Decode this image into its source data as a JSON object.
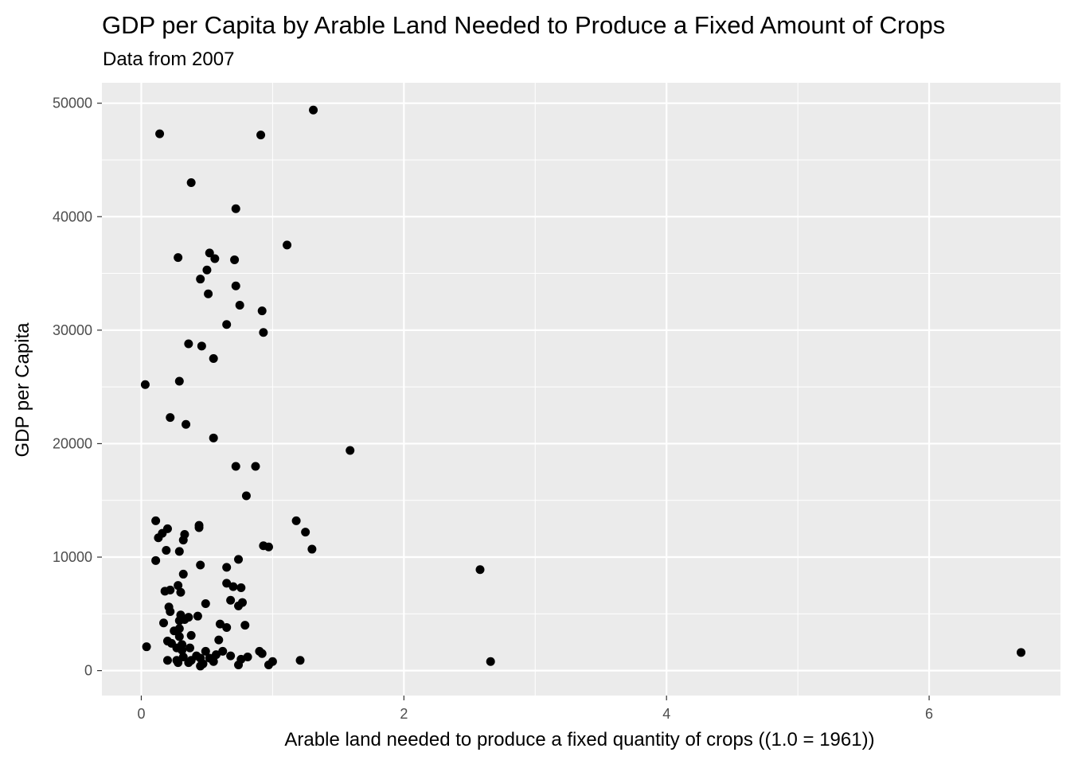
{
  "chart_data": {
    "type": "scatter",
    "title": "GDP per Capita by Arable Land Needed to Produce a Fixed Amount of Crops",
    "subtitle": "Data from 2007",
    "xlabel": "Arable land needed to produce a fixed quantity of crops ((1.0 = 1961))",
    "ylabel": "GDP per Capita",
    "xlim": [
      -0.3,
      7.0
    ],
    "ylim": [
      -2200,
      51800
    ],
    "x_ticks": [
      0,
      2,
      4,
      6
    ],
    "y_ticks": [
      0,
      10000,
      20000,
      30000,
      40000,
      50000
    ],
    "x_tick_labels": [
      "0",
      "2",
      "4",
      "6"
    ],
    "y_tick_labels": [
      "0",
      "10000",
      "20000",
      "30000",
      "40000",
      "50000"
    ],
    "grid": true,
    "legend": "none",
    "colors": {
      "panel": "#ebebeb",
      "grid": "#ffffff",
      "point": "#000000",
      "tick": "#4d4d4d"
    },
    "points": [
      {
        "x": 1.31,
        "y": 49400
      },
      {
        "x": 0.14,
        "y": 47300
      },
      {
        "x": 0.91,
        "y": 47200
      },
      {
        "x": 0.38,
        "y": 43000
      },
      {
        "x": 0.72,
        "y": 40700
      },
      {
        "x": 1.11,
        "y": 37500
      },
      {
        "x": 0.52,
        "y": 36800
      },
      {
        "x": 0.28,
        "y": 36400
      },
      {
        "x": 0.56,
        "y": 36300
      },
      {
        "x": 0.71,
        "y": 36200
      },
      {
        "x": 0.5,
        "y": 35300
      },
      {
        "x": 0.45,
        "y": 34500
      },
      {
        "x": 0.72,
        "y": 33900
      },
      {
        "x": 0.51,
        "y": 33200
      },
      {
        "x": 0.75,
        "y": 32200
      },
      {
        "x": 0.92,
        "y": 31700
      },
      {
        "x": 0.65,
        "y": 30500
      },
      {
        "x": 0.93,
        "y": 29800
      },
      {
        "x": 0.36,
        "y": 28800
      },
      {
        "x": 0.46,
        "y": 28600
      },
      {
        "x": 0.55,
        "y": 27500
      },
      {
        "x": 0.03,
        "y": 25200
      },
      {
        "x": 0.29,
        "y": 25500
      },
      {
        "x": 0.22,
        "y": 22300
      },
      {
        "x": 0.34,
        "y": 21700
      },
      {
        "x": 0.55,
        "y": 20500
      },
      {
        "x": 1.59,
        "y": 19400
      },
      {
        "x": 0.72,
        "y": 18000
      },
      {
        "x": 0.87,
        "y": 18000
      },
      {
        "x": 0.8,
        "y": 15400
      },
      {
        "x": 0.11,
        "y": 13200
      },
      {
        "x": 1.18,
        "y": 13200
      },
      {
        "x": 0.44,
        "y": 12800
      },
      {
        "x": 0.2,
        "y": 12500
      },
      {
        "x": 0.44,
        "y": 12600
      },
      {
        "x": 1.25,
        "y": 12200
      },
      {
        "x": 0.16,
        "y": 12100
      },
      {
        "x": 0.33,
        "y": 12000
      },
      {
        "x": 0.13,
        "y": 11700
      },
      {
        "x": 0.32,
        "y": 11500
      },
      {
        "x": 0.93,
        "y": 11000
      },
      {
        "x": 0.97,
        "y": 10900
      },
      {
        "x": 1.3,
        "y": 10700
      },
      {
        "x": 0.19,
        "y": 10600
      },
      {
        "x": 0.29,
        "y": 10500
      },
      {
        "x": 0.74,
        "y": 9800
      },
      {
        "x": 0.11,
        "y": 9700
      },
      {
        "x": 0.45,
        "y": 9300
      },
      {
        "x": 0.65,
        "y": 9100
      },
      {
        "x": 2.58,
        "y": 8900
      },
      {
        "x": 0.32,
        "y": 8500
      },
      {
        "x": 0.65,
        "y": 7700
      },
      {
        "x": 0.28,
        "y": 7500
      },
      {
        "x": 0.7,
        "y": 7400
      },
      {
        "x": 0.76,
        "y": 7300
      },
      {
        "x": 0.18,
        "y": 7000
      },
      {
        "x": 0.22,
        "y": 7100
      },
      {
        "x": 0.3,
        "y": 6900
      },
      {
        "x": 0.68,
        "y": 6200
      },
      {
        "x": 0.77,
        "y": 6000
      },
      {
        "x": 0.49,
        "y": 5900
      },
      {
        "x": 0.74,
        "y": 5700
      },
      {
        "x": 0.21,
        "y": 5600
      },
      {
        "x": 0.22,
        "y": 5200
      },
      {
        "x": 0.3,
        "y": 4900
      },
      {
        "x": 0.43,
        "y": 4800
      },
      {
        "x": 0.36,
        "y": 4700
      },
      {
        "x": 0.29,
        "y": 4400
      },
      {
        "x": 0.33,
        "y": 4500
      },
      {
        "x": 0.17,
        "y": 4200
      },
      {
        "x": 0.6,
        "y": 4100
      },
      {
        "x": 0.79,
        "y": 4000
      },
      {
        "x": 0.65,
        "y": 3800
      },
      {
        "x": 0.29,
        "y": 3700
      },
      {
        "x": 0.25,
        "y": 3500
      },
      {
        "x": 0.38,
        "y": 3100
      },
      {
        "x": 0.29,
        "y": 3000
      },
      {
        "x": 0.59,
        "y": 2700
      },
      {
        "x": 0.2,
        "y": 2600
      },
      {
        "x": 0.23,
        "y": 2400
      },
      {
        "x": 0.31,
        "y": 2300
      },
      {
        "x": 0.04,
        "y": 2100
      },
      {
        "x": 0.37,
        "y": 2000
      },
      {
        "x": 0.27,
        "y": 2000
      },
      {
        "x": 0.31,
        "y": 1800
      },
      {
        "x": 0.49,
        "y": 1700
      },
      {
        "x": 0.62,
        "y": 1700
      },
      {
        "x": 0.9,
        "y": 1700
      },
      {
        "x": 0.92,
        "y": 1500
      },
      {
        "x": 0.57,
        "y": 1400
      },
      {
        "x": 0.42,
        "y": 1300
      },
      {
        "x": 0.68,
        "y": 1300
      },
      {
        "x": 0.32,
        "y": 1200
      },
      {
        "x": 0.81,
        "y": 1200
      },
      {
        "x": 0.45,
        "y": 1100
      },
      {
        "x": 0.52,
        "y": 1100
      },
      {
        "x": 0.76,
        "y": 1000
      },
      {
        "x": 0.2,
        "y": 900
      },
      {
        "x": 0.27,
        "y": 900
      },
      {
        "x": 0.38,
        "y": 900
      },
      {
        "x": 1.21,
        "y": 900
      },
      {
        "x": 1.0,
        "y": 800
      },
      {
        "x": 0.55,
        "y": 800
      },
      {
        "x": 0.36,
        "y": 700
      },
      {
        "x": 0.28,
        "y": 700
      },
      {
        "x": 0.47,
        "y": 600
      },
      {
        "x": 0.97,
        "y": 500
      },
      {
        "x": 0.74,
        "y": 500
      },
      {
        "x": 0.45,
        "y": 400
      },
      {
        "x": 2.66,
        "y": 800
      },
      {
        "x": 6.7,
        "y": 1600
      }
    ]
  }
}
